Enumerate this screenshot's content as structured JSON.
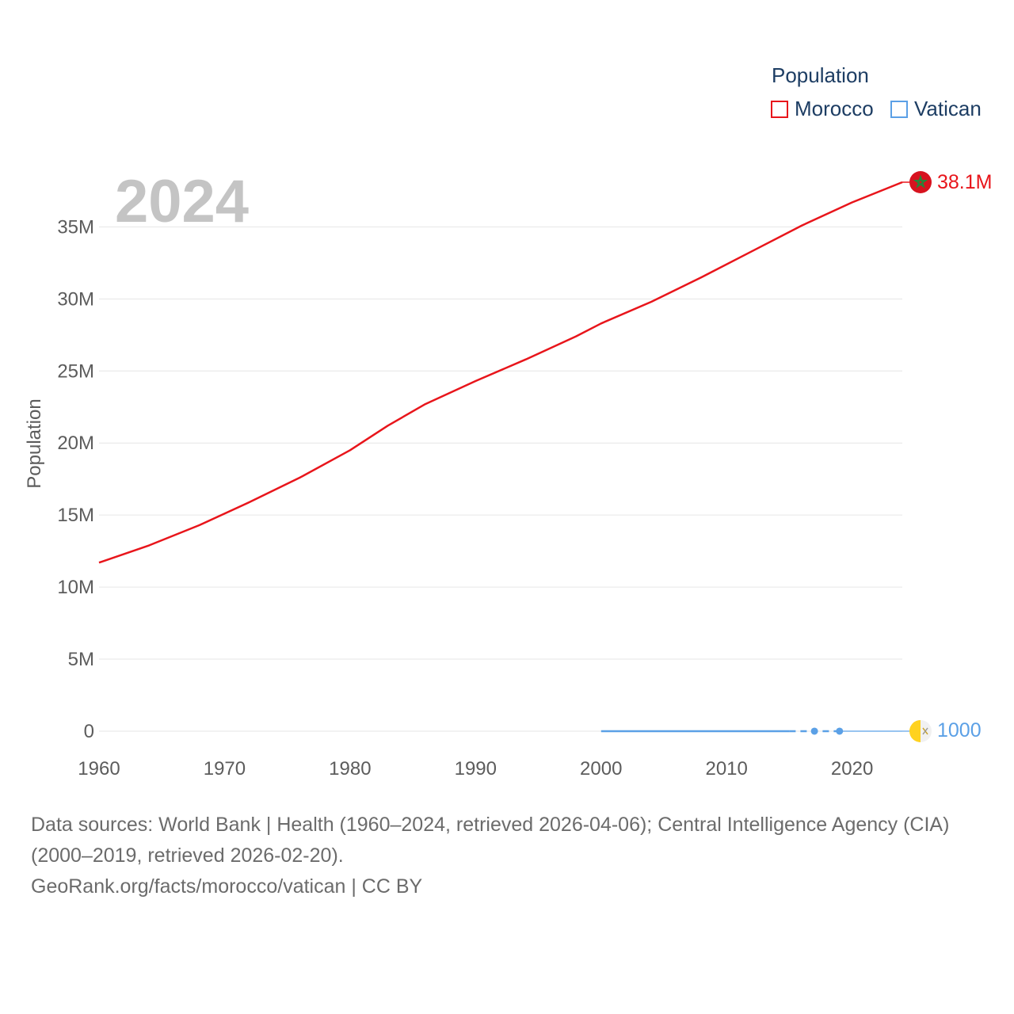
{
  "legend": {
    "title": "Population",
    "items": [
      {
        "label": "Morocco",
        "color": "#e8151b"
      },
      {
        "label": "Vatican",
        "color": "#5ba0e6"
      }
    ]
  },
  "source": {
    "line1": "Data sources: World Bank | Health (1960–2024, retrieved 2026-04-06); Central Intelligence Agency (CIA) (2000–2019, retrieved 2026-02-20).",
    "line2": "GeoRank.org/facts/morocco/vatican | CC BY"
  },
  "chart_data": {
    "type": "line",
    "title": "",
    "year_label": "2024",
    "xlabel": "",
    "ylabel": "Population",
    "xlim": [
      1960,
      2024
    ],
    "ylim": [
      0,
      38100000
    ],
    "x_ticks": [
      1960,
      1970,
      1980,
      1990,
      2000,
      2010,
      2020
    ],
    "y_ticks": [
      {
        "value": 0,
        "label": "0"
      },
      {
        "value": 5000000,
        "label": "5M"
      },
      {
        "value": 10000000,
        "label": "10M"
      },
      {
        "value": 15000000,
        "label": "15M"
      },
      {
        "value": 20000000,
        "label": "20M"
      },
      {
        "value": 25000000,
        "label": "25M"
      },
      {
        "value": 30000000,
        "label": "30M"
      },
      {
        "value": 35000000,
        "label": "35M"
      }
    ],
    "series": [
      {
        "name": "Morocco",
        "color": "#e8151b",
        "end_label": "38.1M",
        "flag_icon": "morocco-flag-icon",
        "points": [
          [
            1960,
            11700000
          ],
          [
            1964,
            12900000
          ],
          [
            1968,
            14300000
          ],
          [
            1972,
            15900000
          ],
          [
            1976,
            17600000
          ],
          [
            1980,
            19500000
          ],
          [
            1983,
            21200000
          ],
          [
            1986,
            22700000
          ],
          [
            1990,
            24300000
          ],
          [
            1994,
            25800000
          ],
          [
            1998,
            27400000
          ],
          [
            2000,
            28300000
          ],
          [
            2004,
            29800000
          ],
          [
            2008,
            31500000
          ],
          [
            2012,
            33300000
          ],
          [
            2016,
            35100000
          ],
          [
            2020,
            36700000
          ],
          [
            2024,
            38100000
          ]
        ]
      },
      {
        "name": "Vatican",
        "color": "#5ba0e6",
        "end_label": "1000",
        "flag_icon": "vatican-flag-icon",
        "points": [
          [
            2000,
            900
          ],
          [
            2005,
            900
          ],
          [
            2010,
            830
          ],
          [
            2015,
            1000
          ],
          [
            2017,
            1000
          ],
          [
            2019,
            1000
          ],
          [
            2024,
            1000
          ]
        ],
        "markers": [
          2017,
          2019
        ]
      }
    ]
  }
}
